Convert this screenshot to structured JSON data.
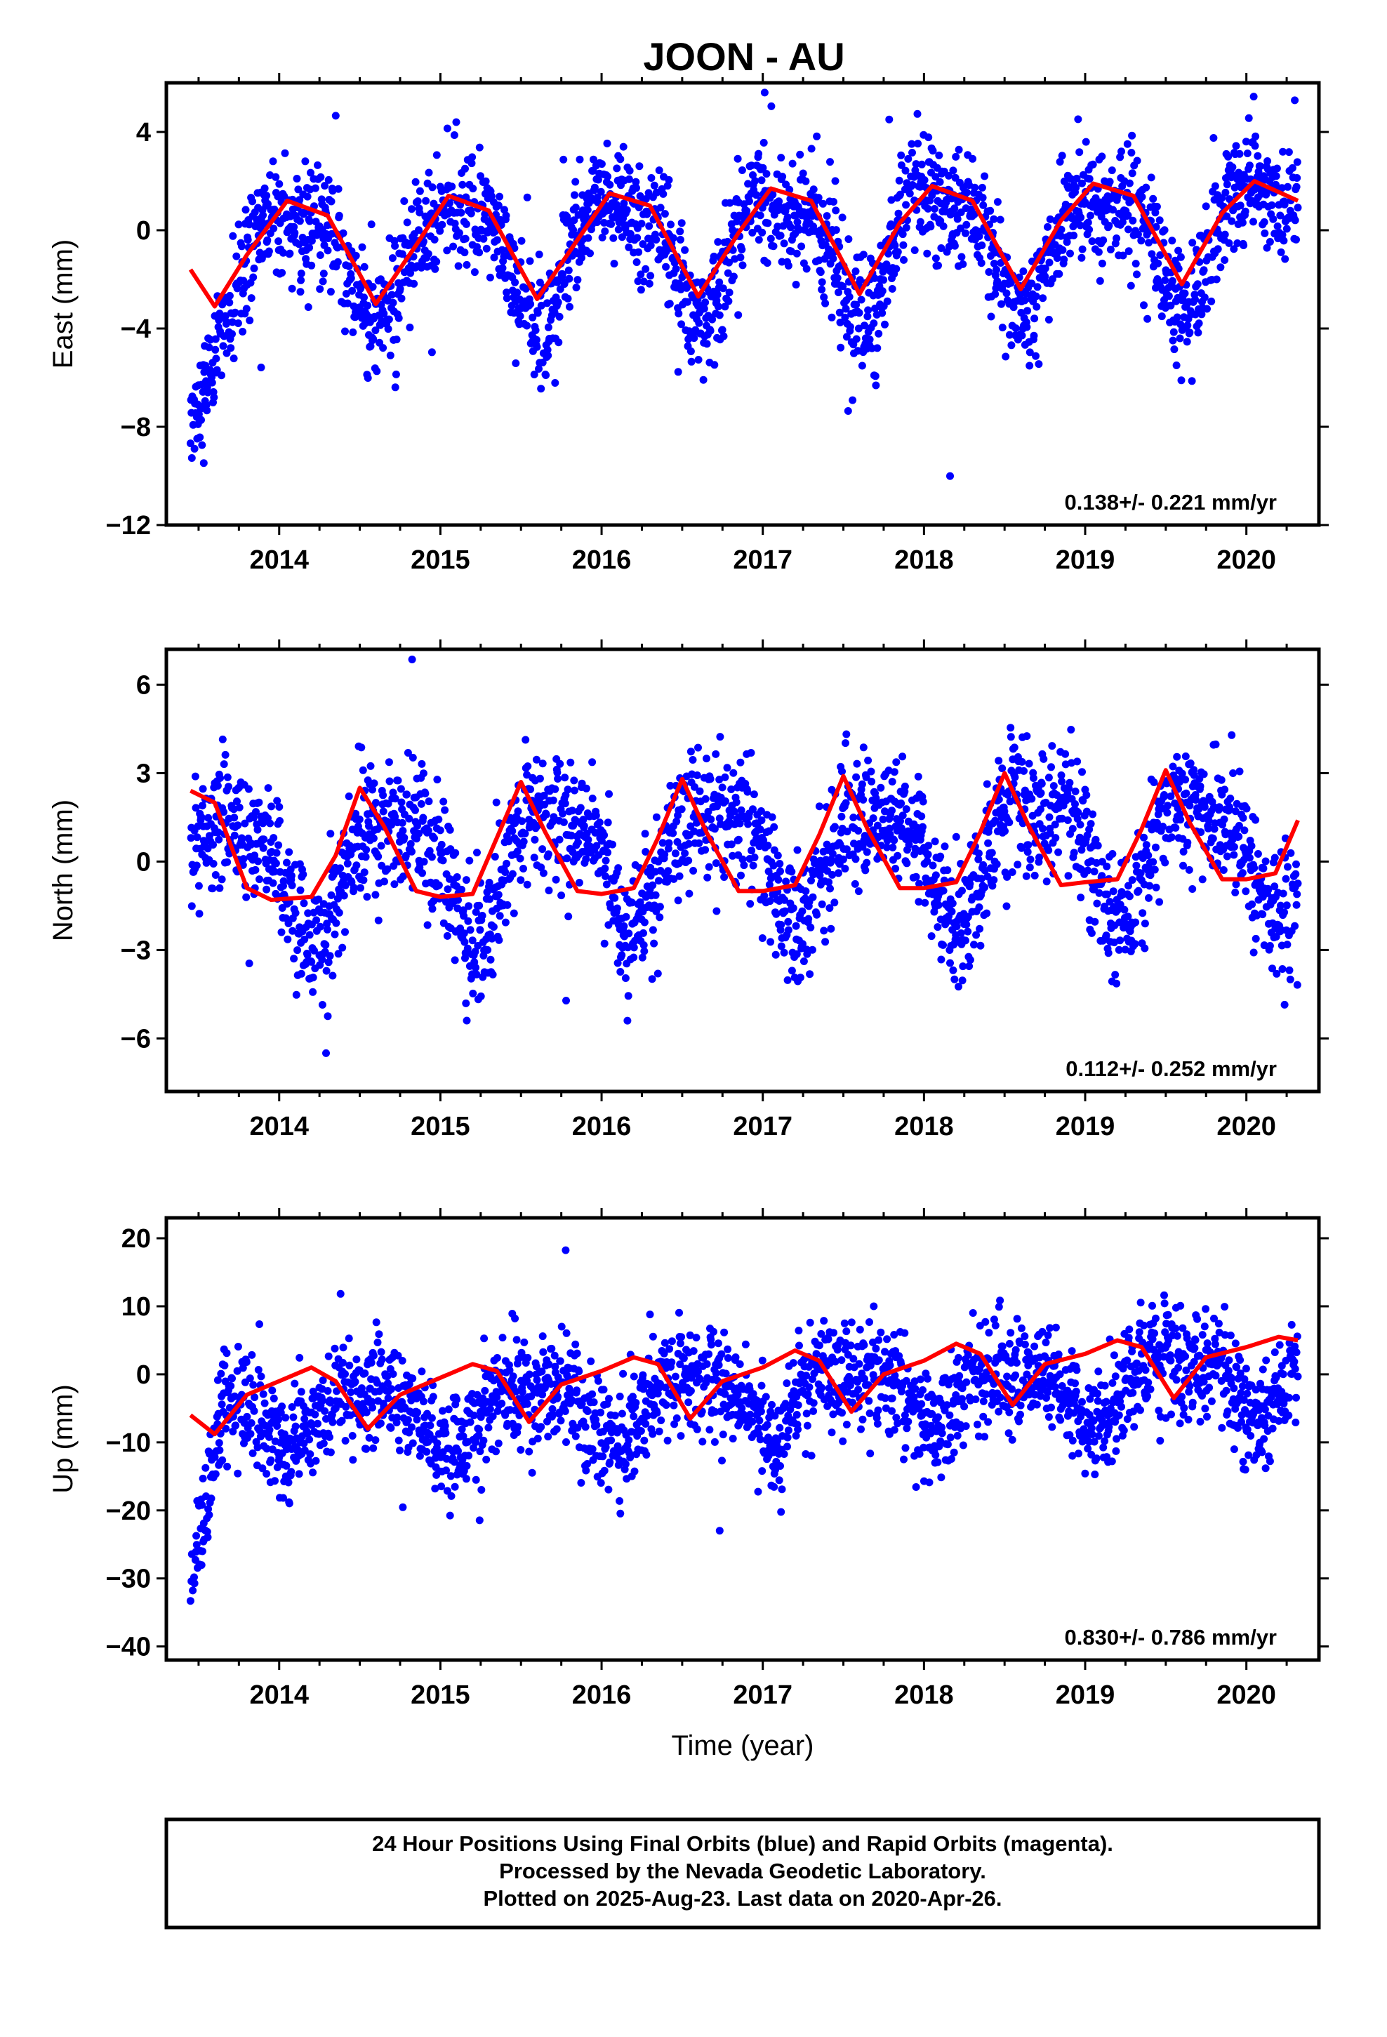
{
  "chart_data": {
    "type": "scatter",
    "title": "JOON - AU",
    "xlabel": "Time (year)",
    "x_range": [
      2013.3,
      2020.45
    ],
    "x_ticks": [
      2014,
      2015,
      2016,
      2017,
      2018,
      2019,
      2020
    ],
    "marker_color": "#0000ff",
    "fit_color": "#ff0000",
    "data_start": 2013.45,
    "data_end": 2020.32,
    "panels": [
      {
        "ylabel": "East (mm)",
        "ylim": [
          -12,
          6
        ],
        "yticks": [
          -12,
          -8,
          -4,
          0,
          4
        ],
        "rate": "0.138+/- 0.221 mm/yr",
        "fit": {
          "offset": -0.6,
          "trend": 0.138,
          "amp": 2.2,
          "phase": 0.85,
          "transient": -5.5
        },
        "noise": 1.2,
        "fit_points": [
          [
            2013.45,
            -1.6
          ],
          [
            2013.6,
            -3.1
          ],
          [
            2013.8,
            -1.0
          ],
          [
            2014.05,
            1.2
          ],
          [
            2014.3,
            0.6
          ],
          [
            2014.6,
            -3.0
          ],
          [
            2014.85,
            -0.6
          ],
          [
            2015.05,
            1.4
          ],
          [
            2015.3,
            0.8
          ],
          [
            2015.6,
            -2.8
          ],
          [
            2015.85,
            -0.4
          ],
          [
            2016.05,
            1.5
          ],
          [
            2016.3,
            1.0
          ],
          [
            2016.6,
            -2.7
          ],
          [
            2016.85,
            -0.1
          ],
          [
            2017.05,
            1.7
          ],
          [
            2017.3,
            1.2
          ],
          [
            2017.6,
            -2.6
          ],
          [
            2017.85,
            0.3
          ],
          [
            2018.05,
            1.8
          ],
          [
            2018.3,
            1.2
          ],
          [
            2018.6,
            -2.4
          ],
          [
            2018.85,
            0.4
          ],
          [
            2019.05,
            1.9
          ],
          [
            2019.3,
            1.4
          ],
          [
            2019.6,
            -2.2
          ],
          [
            2019.85,
            0.7
          ],
          [
            2020.05,
            2.0
          ],
          [
            2020.32,
            1.2
          ]
        ]
      },
      {
        "ylabel": "North (mm)",
        "ylim": [
          -7.8,
          7.2
        ],
        "yticks": [
          -6,
          -3,
          0,
          3,
          6
        ],
        "rate": "0.112+/- 0.252 mm/yr",
        "fit": {
          "offset": 0.2,
          "trend": 0.112,
          "amp": 1.9,
          "phase": 0.45,
          "transient": 0
        },
        "noise": 1.1,
        "fit_points": [
          [
            2013.45,
            2.4
          ],
          [
            2013.6,
            2.0
          ],
          [
            2013.8,
            -0.9
          ],
          [
            2013.95,
            -1.3
          ],
          [
            2014.2,
            -1.2
          ],
          [
            2014.35,
            0.2
          ],
          [
            2014.5,
            2.5
          ],
          [
            2014.65,
            1.2
          ],
          [
            2014.85,
            -1.0
          ],
          [
            2015.0,
            -1.2
          ],
          [
            2015.2,
            -1.1
          ],
          [
            2015.35,
            0.8
          ],
          [
            2015.5,
            2.7
          ],
          [
            2015.65,
            1.0
          ],
          [
            2015.85,
            -1.0
          ],
          [
            2016.0,
            -1.1
          ],
          [
            2016.2,
            -0.9
          ],
          [
            2016.35,
            0.8
          ],
          [
            2016.5,
            2.8
          ],
          [
            2016.65,
            1.0
          ],
          [
            2016.85,
            -1.0
          ],
          [
            2017.0,
            -1.0
          ],
          [
            2017.2,
            -0.8
          ],
          [
            2017.35,
            0.9
          ],
          [
            2017.5,
            2.9
          ],
          [
            2017.65,
            1.1
          ],
          [
            2017.85,
            -0.9
          ],
          [
            2018.0,
            -0.9
          ],
          [
            2018.2,
            -0.7
          ],
          [
            2018.35,
            1.0
          ],
          [
            2018.5,
            3.0
          ],
          [
            2018.65,
            1.2
          ],
          [
            2018.85,
            -0.8
          ],
          [
            2019.0,
            -0.7
          ],
          [
            2019.2,
            -0.6
          ],
          [
            2019.35,
            1.1
          ],
          [
            2019.5,
            3.1
          ],
          [
            2019.65,
            1.3
          ],
          [
            2019.85,
            -0.6
          ],
          [
            2020.0,
            -0.6
          ],
          [
            2020.18,
            -0.4
          ],
          [
            2020.32,
            1.4
          ]
        ]
      },
      {
        "ylabel": "Up (mm)",
        "ylim": [
          -42,
          23
        ],
        "yticks": [
          -40,
          -30,
          -20,
          -10,
          0,
          10,
          20
        ],
        "rate": "0.830+/- 0.786 mm/yr",
        "fit": {
          "offset": -3.5,
          "trend": 0.83,
          "amp": 4.2,
          "phase": 0.3,
          "transient": -30
        },
        "noise": 4.0,
        "fit_points": [
          [
            2013.45,
            -6.0
          ],
          [
            2013.6,
            -8.8
          ],
          [
            2013.8,
            -3.0
          ],
          [
            2014.0,
            -1.0
          ],
          [
            2014.2,
            1.0
          ],
          [
            2014.35,
            -1.0
          ],
          [
            2014.55,
            -8.0
          ],
          [
            2014.75,
            -3.0
          ],
          [
            2015.0,
            -0.5
          ],
          [
            2015.2,
            1.5
          ],
          [
            2015.35,
            0.5
          ],
          [
            2015.55,
            -7.0
          ],
          [
            2015.75,
            -1.5
          ],
          [
            2016.0,
            0.5
          ],
          [
            2016.2,
            2.5
          ],
          [
            2016.35,
            1.5
          ],
          [
            2016.55,
            -6.5
          ],
          [
            2016.75,
            -1.0
          ],
          [
            2017.0,
            1.0
          ],
          [
            2017.2,
            3.5
          ],
          [
            2017.35,
            2.0
          ],
          [
            2017.55,
            -5.5
          ],
          [
            2017.75,
            0.0
          ],
          [
            2018.0,
            2.0
          ],
          [
            2018.2,
            4.5
          ],
          [
            2018.35,
            3.0
          ],
          [
            2018.55,
            -4.5
          ],
          [
            2018.75,
            1.5
          ],
          [
            2019.0,
            3.0
          ],
          [
            2019.2,
            5.0
          ],
          [
            2019.35,
            4.0
          ],
          [
            2019.55,
            -3.5
          ],
          [
            2019.75,
            2.5
          ],
          [
            2020.0,
            4.0
          ],
          [
            2020.2,
            5.5
          ],
          [
            2020.32,
            5.0
          ]
        ]
      }
    ],
    "footer": [
      "24 Hour Positions Using Final Orbits (blue) and Rapid Orbits (magenta).",
      "Processed by the Nevada Geodetic Laboratory.",
      "Plotted on 2025-Aug-23. Last data on 2020-Apr-26."
    ]
  }
}
